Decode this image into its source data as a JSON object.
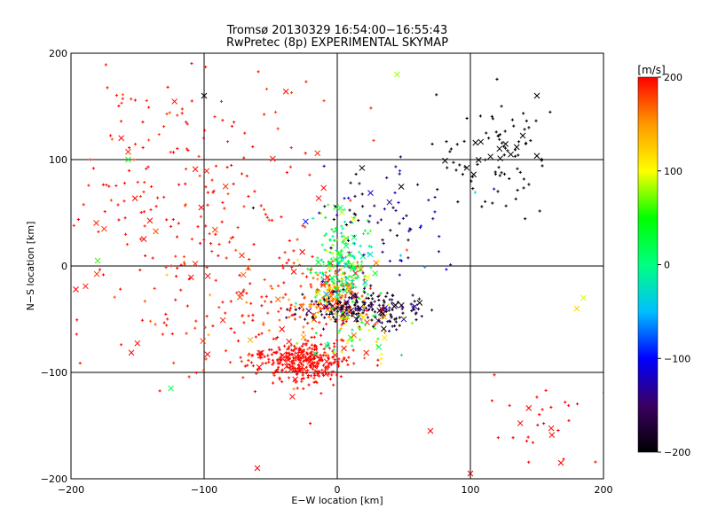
{
  "chart_data": {
    "type": "scatter",
    "title": "Tromsø 20130329 16:54:00−16:55:43",
    "subtitle": "RwPretec (8p) EXPERIMENTAL SKYMAP",
    "xlabel": "E−W location [km]",
    "ylabel": "N−S location [km]",
    "xlim": [
      -200,
      200
    ],
    "ylim": [
      -200,
      200
    ],
    "x_ticks": [
      -200,
      -100,
      0,
      100,
      200
    ],
    "y_ticks": [
      -200,
      -100,
      0,
      100,
      200
    ],
    "x_tick_labels": [
      "−200",
      "−100",
      "0",
      "100",
      "200"
    ],
    "y_tick_labels": [
      "−200",
      "−100",
      "0",
      "100",
      "200"
    ],
    "grid": true,
    "markers": [
      "+",
      "x"
    ],
    "colorbar": {
      "label": "[m/s]",
      "range": [
        -200,
        200
      ],
      "ticks": [
        200,
        100,
        0,
        -100,
        -200
      ],
      "tick_labels": [
        "200",
        "100",
        "0",
        "−100",
        "−200"
      ],
      "colormap": [
        "#000000",
        "#3a0062",
        "#0000ff",
        "#00bfff",
        "#00ff80",
        "#00ff00",
        "#ffff00",
        "#ff9900",
        "#ff0000"
      ]
    },
    "clusters": [
      {
        "center": [
          -25,
          -90
        ],
        "spread": [
          18,
          10
        ],
        "count": 320,
        "v_mean": 200,
        "v_spread": 5
      },
      {
        "center": [
          -120,
          60
        ],
        "spread": [
          55,
          75
        ],
        "count": 260,
        "v_mean": 195,
        "v_spread": 10
      },
      {
        "center": [
          -55,
          -40
        ],
        "spread": [
          40,
          35
        ],
        "count": 140,
        "v_mean": 190,
        "v_spread": 20
      },
      {
        "center": [
          0,
          -25
        ],
        "spread": [
          10,
          12
        ],
        "count": 180,
        "v_mean": 170,
        "v_spread": 35
      },
      {
        "center": [
          5,
          5
        ],
        "spread": [
          10,
          20
        ],
        "count": 200,
        "v_mean": 20,
        "v_spread": 40
      },
      {
        "center": [
          20,
          -40
        ],
        "spread": [
          22,
          8
        ],
        "count": 200,
        "v_mean": -170,
        "v_spread": 25
      },
      {
        "center": [
          120,
          100
        ],
        "spread": [
          20,
          25
        ],
        "count": 90,
        "v_mean": -200,
        "v_spread": 3
      },
      {
        "center": [
          40,
          50
        ],
        "spread": [
          30,
          30
        ],
        "count": 80,
        "v_mean": -150,
        "v_spread": 40
      },
      {
        "center": [
          10,
          -60
        ],
        "spread": [
          20,
          15
        ],
        "count": 70,
        "v_mean": 90,
        "v_spread": 60
      },
      {
        "center": [
          150,
          -150
        ],
        "spread": [
          25,
          25
        ],
        "count": 30,
        "v_mean": 200,
        "v_spread": 2
      }
    ],
    "extra_points": [
      {
        "x": 150,
        "y": 160,
        "v": -200
      },
      {
        "x": 168,
        "y": -185,
        "v": 200
      },
      {
        "x": 180,
        "y": -40,
        "v": 120
      },
      {
        "x": 185,
        "y": -30,
        "v": 90
      },
      {
        "x": 100,
        "y": -195,
        "v": 200
      },
      {
        "x": -60,
        "y": -190,
        "v": 200
      },
      {
        "x": 70,
        "y": -155,
        "v": 200
      },
      {
        "x": -157,
        "y": 100,
        "v": 40
      },
      {
        "x": -180,
        "y": 5,
        "v": 60
      },
      {
        "x": -125,
        "y": -115,
        "v": 20
      },
      {
        "x": -100,
        "y": 160,
        "v": -200
      },
      {
        "x": 45,
        "y": 180,
        "v": 80
      }
    ]
  }
}
